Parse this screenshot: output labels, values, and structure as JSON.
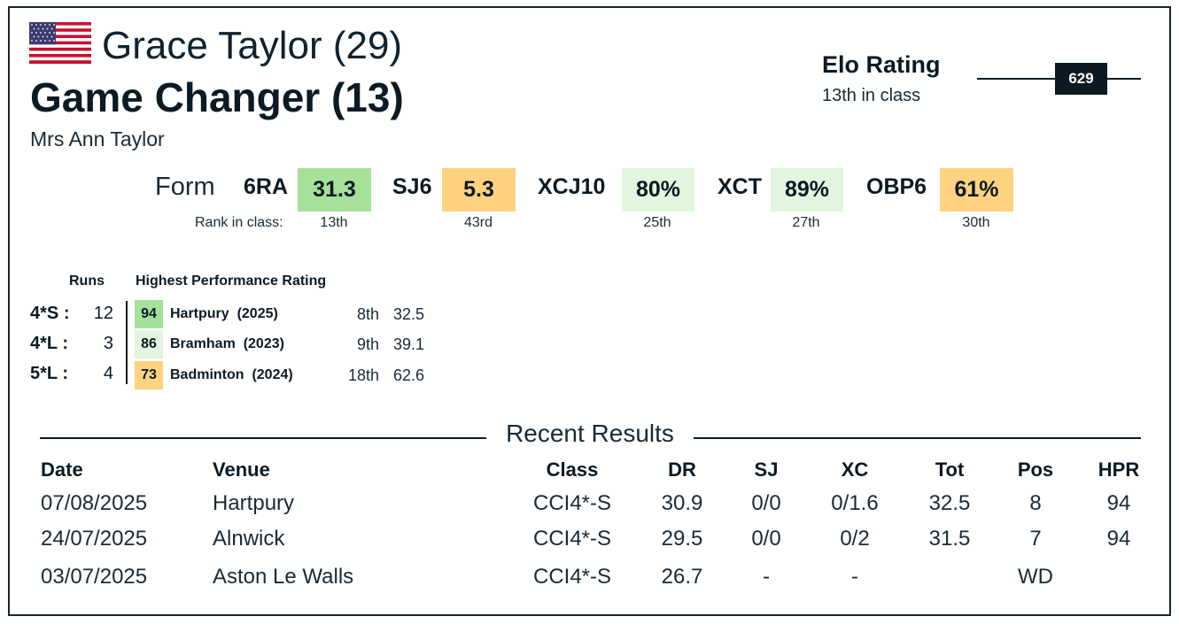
{
  "header": {
    "rider": "Grace Taylor (29)",
    "horse": "Game Changer (13)",
    "owner": "Mrs Ann Taylor",
    "flag_icon": "us-flag-icon"
  },
  "elo": {
    "title": "Elo Rating",
    "subtitle": "13th in class",
    "value": "629",
    "level": 629
  },
  "form": {
    "label": "Form",
    "rank_label": "Rank in class:",
    "items": [
      {
        "key": "6RA",
        "value": "31.3",
        "rank": "13th",
        "color": "#a6e19a"
      },
      {
        "key": "SJ6",
        "value": "5.3",
        "rank": "43rd",
        "color": "#ffd27f"
      },
      {
        "key": "XCJ10",
        "value": "80%",
        "rank": "25th",
        "color": "#e2f5de"
      },
      {
        "key": "XCT",
        "value": "89%",
        "rank": "27th",
        "color": "#e2f5de"
      },
      {
        "key": "OBP6",
        "value": "61%",
        "rank": "30th",
        "color": "#ffd27f"
      }
    ]
  },
  "runs": {
    "heading": "Runs",
    "hpr_heading": "Highest Performance Rating",
    "rows": [
      {
        "cls": "4*S",
        "sep": ":",
        "count": "12",
        "hpr": "94",
        "event": "Hartpury",
        "year": "(2025)",
        "pos": "8th",
        "score": "32.5",
        "color": "#a6e19a"
      },
      {
        "cls": "4*L",
        "sep": ":",
        "count": "3",
        "hpr": "86",
        "event": "Bramham",
        "year": "(2023)",
        "pos": "9th",
        "score": "39.1",
        "color": "#e2f5de"
      },
      {
        "cls": "5*L",
        "sep": ":",
        "count": "4",
        "hpr": "73",
        "event": "Badminton",
        "year": "(2024)",
        "pos": "18th",
        "score": "62.6",
        "color": "#ffd27f"
      }
    ]
  },
  "recent": {
    "title": "Recent Results",
    "columns": [
      "Date",
      "Venue",
      "Class",
      "DR",
      "SJ",
      "XC",
      "Tot",
      "Pos",
      "HPR"
    ],
    "rows": [
      [
        "07/08/2025",
        "Hartpury",
        "CCI4*-S",
        "30.9",
        "0/0",
        "0/1.6",
        "32.5",
        "8",
        "94"
      ],
      [
        "24/07/2025",
        "Alnwick",
        "CCI4*-S",
        "29.5",
        "0/0",
        "0/2",
        "31.5",
        "7",
        "94"
      ],
      [
        "03/07/2025",
        "Aston Le Walls",
        "CCI4*-S",
        "26.7",
        "-",
        "-",
        "",
        "WD",
        ""
      ]
    ]
  }
}
